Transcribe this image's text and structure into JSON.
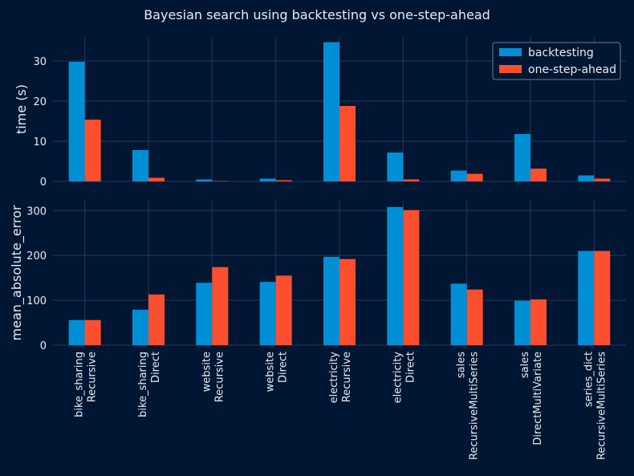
{
  "chart_data": {
    "type": "bar",
    "title": "Bayesian search using backtesting vs one-step-ahead",
    "categories": [
      [
        "bike_sharing",
        "Recursive"
      ],
      [
        "bike_sharing",
        "Direct"
      ],
      [
        "website",
        "Recursive"
      ],
      [
        "website",
        "Direct"
      ],
      [
        "electricity",
        "Recursive"
      ],
      [
        "electricity",
        "Direct"
      ],
      [
        "sales",
        "RecursiveMultiSeries"
      ],
      [
        "sales",
        "DirectMultiVariate"
      ],
      [
        "series_dict",
        "RecursiveMultiSeries"
      ]
    ],
    "legend": {
      "placement": "top-right"
    },
    "grid": true,
    "panels": [
      {
        "ylabel": "time (s)",
        "ylim": [
          0,
          36
        ],
        "yticks": [
          0,
          10,
          20,
          30
        ],
        "series": [
          {
            "name": "backtesting",
            "color": "#008fd5",
            "values": [
              29.8,
              7.8,
              0.5,
              0.7,
              34.7,
              7.2,
              2.7,
              11.8,
              1.5
            ]
          },
          {
            "name": "one-step-ahead",
            "color": "#fc4f30",
            "values": [
              15.4,
              0.9,
              0.1,
              0.3,
              18.8,
              0.5,
              1.9,
              3.2,
              0.7
            ]
          }
        ]
      },
      {
        "ylabel": "mean_absolute_error",
        "ylim": [
          0,
          322
        ],
        "yticks": [
          0,
          100,
          200,
          300
        ],
        "series": [
          {
            "name": "backtesting",
            "color": "#008fd5",
            "values": [
              56,
              79,
              139,
              141,
              197,
              308,
              137,
              99,
              210
            ]
          },
          {
            "name": "one-step-ahead",
            "color": "#fc4f30",
            "values": [
              56,
              113,
              174,
              155,
              192,
              301,
              124,
              102,
              210
            ]
          }
        ]
      }
    ]
  }
}
